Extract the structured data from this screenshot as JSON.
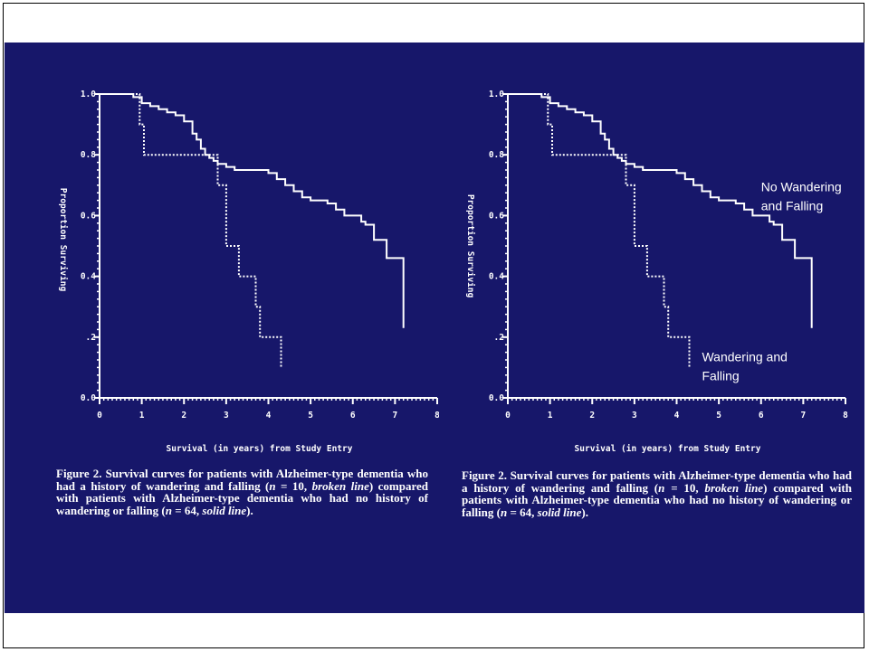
{
  "chart_data": [
    {
      "type": "line",
      "xlabel": "Survival (in years) from Study Entry",
      "ylabel": "Proportion Surviving",
      "xlim": [
        0,
        8
      ],
      "ylim": [
        0,
        1
      ],
      "x_ticks": [
        "0",
        "1",
        "2",
        "3",
        "4",
        "5",
        "6",
        "7",
        "8"
      ],
      "y_ticks": [
        "0.0",
        ".2",
        "0.4",
        "0.6",
        "0.8",
        "1.0"
      ],
      "series": [
        {
          "style": "solid",
          "x": [
            0,
            0.6,
            0.8,
            1.0,
            1.2,
            1.4,
            1.6,
            1.8,
            2.0,
            2.2,
            2.3,
            2.4,
            2.5,
            2.6,
            2.7,
            2.8,
            3.0,
            3.2,
            3.6,
            4.0,
            4.2,
            4.4,
            4.6,
            4.8,
            5.0,
            5.2,
            5.4,
            5.6,
            5.8,
            6.2,
            6.3,
            6.5,
            6.8,
            7.2,
            7.2
          ],
          "y": [
            1.0,
            1.0,
            0.99,
            0.97,
            0.96,
            0.95,
            0.94,
            0.93,
            0.91,
            0.87,
            0.85,
            0.82,
            0.8,
            0.79,
            0.78,
            0.77,
            0.76,
            0.75,
            0.75,
            0.74,
            0.72,
            0.7,
            0.68,
            0.66,
            0.65,
            0.65,
            0.64,
            0.62,
            0.6,
            0.58,
            0.57,
            0.52,
            0.46,
            0.46,
            0.23
          ]
        },
        {
          "style": "dashed",
          "x": [
            0,
            0.75,
            0.95,
            1.05,
            2.6,
            2.8,
            3.0,
            3.3,
            3.7,
            3.8,
            4.2,
            4.3
          ],
          "y": [
            1.0,
            1.0,
            0.9,
            0.8,
            0.8,
            0.7,
            0.5,
            0.4,
            0.3,
            0.2,
            0.2,
            0.1
          ]
        }
      ]
    },
    {
      "type": "line",
      "xlabel": "Survival (in years) from Study Entry",
      "ylabel": "Proportion Surviving",
      "xlim": [
        0,
        8
      ],
      "ylim": [
        0,
        1
      ],
      "x_ticks": [
        "0",
        "1",
        "2",
        "3",
        "4",
        "5",
        "6",
        "7",
        "8"
      ],
      "y_ticks": [
        "0.0",
        ".2",
        "0.4",
        "0.6",
        "0.8",
        "1.0"
      ],
      "annotations": [
        "No Wandering and Falling",
        "Wandering and Falling"
      ],
      "series": [
        {
          "name": "No Wandering and Falling",
          "style": "solid",
          "x": [
            0,
            0.6,
            0.8,
            1.0,
            1.2,
            1.4,
            1.6,
            1.8,
            2.0,
            2.2,
            2.3,
            2.4,
            2.5,
            2.6,
            2.7,
            2.8,
            3.0,
            3.2,
            3.6,
            4.0,
            4.2,
            4.4,
            4.6,
            4.8,
            5.0,
            5.2,
            5.4,
            5.6,
            5.8,
            6.2,
            6.3,
            6.5,
            6.8,
            7.2,
            7.2
          ],
          "y": [
            1.0,
            1.0,
            0.99,
            0.97,
            0.96,
            0.95,
            0.94,
            0.93,
            0.91,
            0.87,
            0.85,
            0.82,
            0.8,
            0.79,
            0.78,
            0.77,
            0.76,
            0.75,
            0.75,
            0.74,
            0.72,
            0.7,
            0.68,
            0.66,
            0.65,
            0.65,
            0.64,
            0.62,
            0.6,
            0.58,
            0.57,
            0.52,
            0.46,
            0.46,
            0.23
          ]
        },
        {
          "name": "Wandering and Falling",
          "style": "dashed",
          "x": [
            0,
            0.75,
            0.95,
            1.05,
            2.6,
            2.8,
            3.0,
            3.3,
            3.7,
            3.8,
            4.2,
            4.3
          ],
          "y": [
            1.0,
            1.0,
            0.9,
            0.8,
            0.8,
            0.7,
            0.5,
            0.4,
            0.3,
            0.2,
            0.2,
            0.1
          ]
        }
      ]
    }
  ],
  "captions": [
    {
      "label": "Figure 2.",
      "part1": " Survival curves for patients with Alzheimer-type dementia who had a history of wandering and falling (",
      "n1": "n",
      "part2": " = 10, ",
      "broken": "broken line",
      "part3": ") compared with patients with Alzheimer-type dementia who had no history of wandering or falling (",
      "n2": "n",
      "part4": " = 64, ",
      "solid": "solid line",
      "part5": ")."
    },
    {
      "label": "Figure 2.",
      "part1": " Survival curves for patients with Alzheimer-type dementia who had a history of wandering and falling (",
      "n1": "n",
      "part2": " = 10, ",
      "broken": "broken line",
      "part3": ") compared with patients with Alzheimer-type dementia who had no history of wandering or falling (",
      "n2": "n",
      "part4": " = 64, ",
      "solid": "solid line",
      "part5": ")."
    }
  ],
  "colors": {
    "slide_bg": "#17176a",
    "ink": "#ffffff"
  }
}
